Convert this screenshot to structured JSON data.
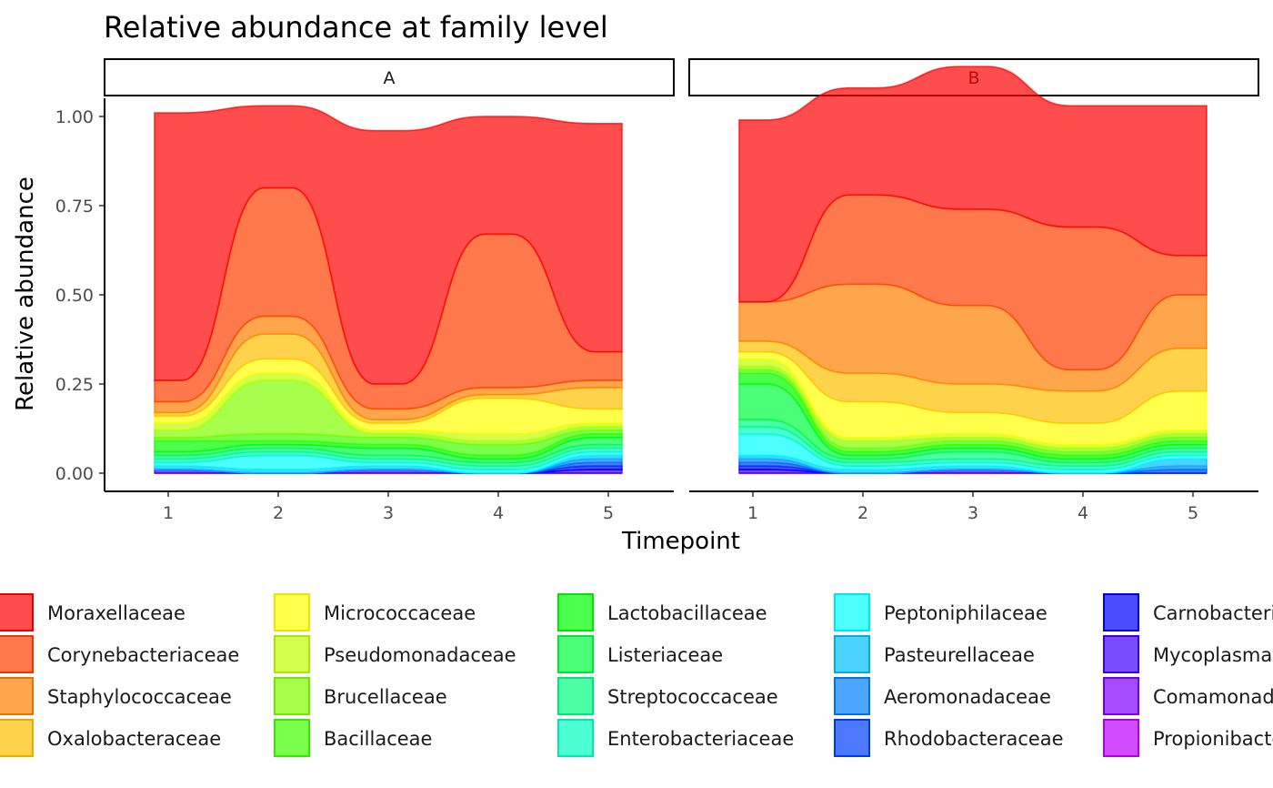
{
  "chart_data": {
    "type": "area",
    "title": "Relative abundance at family level",
    "xlabel": "Timepoint",
    "ylabel": "Relative abundance",
    "x": [
      1,
      2,
      3,
      4,
      5
    ],
    "xticks": [
      "1",
      "2",
      "3",
      "4",
      "5"
    ],
    "ylim": [
      0,
      1
    ],
    "yticks": [
      "0.00",
      "0.25",
      "0.50",
      "0.75",
      "1.00"
    ],
    "grid": false,
    "legend_position": "bottom",
    "facets": [
      "A",
      "B"
    ],
    "series": [
      {
        "name": "Moraxellaceae",
        "color": "#FF0000",
        "values": {
          "A": [
            0.75,
            0.23,
            0.71,
            0.33,
            0.64
          ],
          "B": [
            0.51,
            0.3,
            0.4,
            0.34,
            0.42
          ]
        }
      },
      {
        "name": "Corynebacteriaceae",
        "color": "#FF4000",
        "values": {
          "A": [
            0.06,
            0.36,
            0.07,
            0.43,
            0.08
          ],
          "B": [
            0.0,
            0.25,
            0.27,
            0.4,
            0.11
          ]
        }
      },
      {
        "name": "Staphylococcaceae",
        "color": "#FF8000",
        "values": {
          "A": [
            0.03,
            0.05,
            0.03,
            0.02,
            0.02
          ],
          "B": [
            0.11,
            0.25,
            0.22,
            0.06,
            0.15
          ]
        }
      },
      {
        "name": "Oxalobacteraceae",
        "color": "#FFBF00",
        "values": {
          "A": [
            0.01,
            0.07,
            0.01,
            0.01,
            0.06
          ],
          "B": [
            0.03,
            0.08,
            0.08,
            0.09,
            0.12
          ]
        }
      },
      {
        "name": "Micrococcaceae",
        "color": "#FFFF00",
        "values": {
          "A": [
            0.02,
            0.04,
            0.02,
            0.1,
            0.04
          ],
          "B": [
            0.02,
            0.1,
            0.06,
            0.06,
            0.11
          ]
        }
      },
      {
        "name": "Pseudomonadaceae",
        "color": "#BFFF00",
        "values": {
          "A": [
            0.02,
            0.02,
            0.01,
            0.02,
            0.01
          ],
          "B": [
            0.02,
            0.01,
            0.01,
            0.01,
            0.01
          ]
        }
      },
      {
        "name": "Brucellaceae",
        "color": "#80FF00",
        "values": {
          "A": [
            0.02,
            0.15,
            0.01,
            0.01,
            0.01
          ],
          "B": [
            0.01,
            0.02,
            0.01,
            0.01,
            0.01
          ]
        }
      },
      {
        "name": "Bacillaceae",
        "color": "#40FF00",
        "values": {
          "A": [
            0.01,
            0.02,
            0.02,
            0.03,
            0.01
          ],
          "B": [
            0.01,
            0.01,
            0.01,
            0.01,
            0.01
          ]
        }
      },
      {
        "name": "Lactobacillaceae",
        "color": "#00FF00",
        "values": {
          "A": [
            0.03,
            0.01,
            0.01,
            0.01,
            0.01
          ],
          "B": [
            0.03,
            0.01,
            0.01,
            0.01,
            0.01
          ]
        }
      },
      {
        "name": "Listeriaceae",
        "color": "#00FF40",
        "values": {
          "A": [
            0.01,
            0.01,
            0.02,
            0.01,
            0.02
          ],
          "B": [
            0.1,
            0.01,
            0.01,
            0.01,
            0.01
          ]
        }
      },
      {
        "name": "Streptococcaceae",
        "color": "#00FF80",
        "values": {
          "A": [
            0.01,
            0.01,
            0.01,
            0.01,
            0.01
          ],
          "B": [
            0.02,
            0.01,
            0.02,
            0.01,
            0.01
          ]
        }
      },
      {
        "name": "Enterobacteriaceae",
        "color": "#00FFBF",
        "values": {
          "A": [
            0.01,
            0.01,
            0.01,
            0.01,
            0.01
          ],
          "B": [
            0.02,
            0.01,
            0.01,
            0.01,
            0.01
          ]
        }
      },
      {
        "name": "Peptoniphilaceae",
        "color": "#00FFFF",
        "values": {
          "A": [
            0.01,
            0.04,
            0.01,
            0.01,
            0.01
          ],
          "B": [
            0.06,
            0.01,
            0.01,
            0.01,
            0.01
          ]
        }
      },
      {
        "name": "Pasteurellaceae",
        "color": "#00BFFF",
        "values": {
          "A": [
            0.01,
            0.01,
            0.01,
            0.0,
            0.01
          ],
          "B": [
            0.01,
            0.01,
            0.01,
            0.0,
            0.02
          ]
        }
      },
      {
        "name": "Aeromonadaceae",
        "color": "#0080FF",
        "values": {
          "A": [
            0.0,
            0.0,
            0.0,
            0.0,
            0.01
          ],
          "B": [
            0.01,
            0.0,
            0.0,
            0.0,
            0.01
          ]
        }
      },
      {
        "name": "Rhodobacteraceae",
        "color": "#0040FF",
        "values": {
          "A": [
            0.0,
            0.0,
            0.0,
            0.0,
            0.01
          ],
          "B": [
            0.01,
            0.0,
            0.0,
            0.0,
            0.01
          ]
        }
      },
      {
        "name": "Carnobacteriaceae",
        "color": "#0000FF",
        "values": {
          "A": [
            0.0,
            0.0,
            0.0,
            0.0,
            0.01
          ],
          "B": [
            0.01,
            0.0,
            0.0,
            0.0,
            0.0
          ]
        }
      },
      {
        "name": "Mycoplasmataceae",
        "color": "#4000FF",
        "values": {
          "A": [
            0.01,
            0.0,
            0.01,
            0.0,
            0.01
          ],
          "B": [
            0.01,
            0.0,
            0.01,
            0.0,
            0.0
          ]
        }
      },
      {
        "name": "Comamonadaceae",
        "color": "#8000FF",
        "values": {
          "A": [
            0.0,
            0.0,
            0.0,
            0.0,
            0.0
          ],
          "B": [
            0.0,
            0.0,
            0.0,
            0.0,
            0.0
          ]
        }
      },
      {
        "name": "Propionibacteriaceae",
        "color": "#BF00FF",
        "values": {
          "A": [
            0.0,
            0.0,
            0.0,
            0.0,
            0.0
          ],
          "B": [
            0.0,
            0.0,
            0.0,
            0.0,
            0.0
          ]
        }
      }
    ]
  }
}
